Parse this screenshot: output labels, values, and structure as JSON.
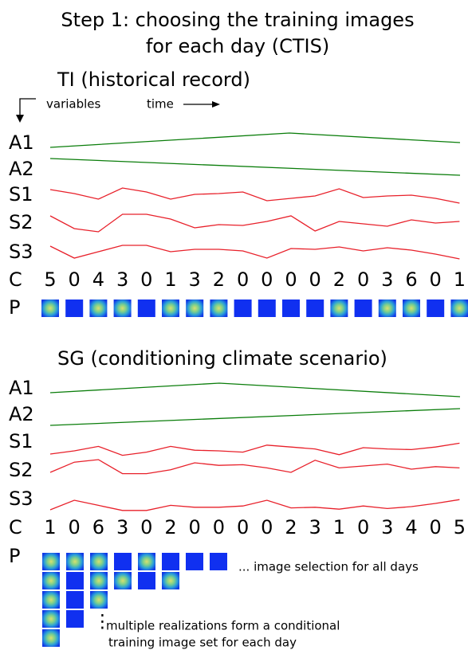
{
  "title_lines": [
    "Step 1: choosing the training images",
    "for each day (CTIS)"
  ],
  "ti": {
    "heading": "TI (historical record)",
    "variables_label": "variables",
    "time_label": "time",
    "rows": [
      "A1",
      "A2",
      "S1",
      "S2",
      "S3",
      "C",
      "P"
    ],
    "C": [
      5,
      0,
      4,
      3,
      0,
      1,
      3,
      2,
      0,
      0,
      0,
      0,
      2,
      0,
      3,
      6,
      0,
      1
    ]
  },
  "sg": {
    "heading": "SG (conditioning climate scenario)",
    "rows": [
      "A1",
      "A2",
      "S1",
      "S2",
      "S3",
      "C",
      "P"
    ],
    "C": [
      1,
      0,
      6,
      3,
      0,
      2,
      0,
      0,
      0,
      0,
      2,
      3,
      1,
      0,
      3,
      4,
      0,
      5
    ]
  },
  "notes": {
    "selection": "... image selection for all days",
    "dots": "⋮",
    "realizations_1": "multiple realizations form a conditional",
    "realizations_2": "training image set for each day"
  }
}
